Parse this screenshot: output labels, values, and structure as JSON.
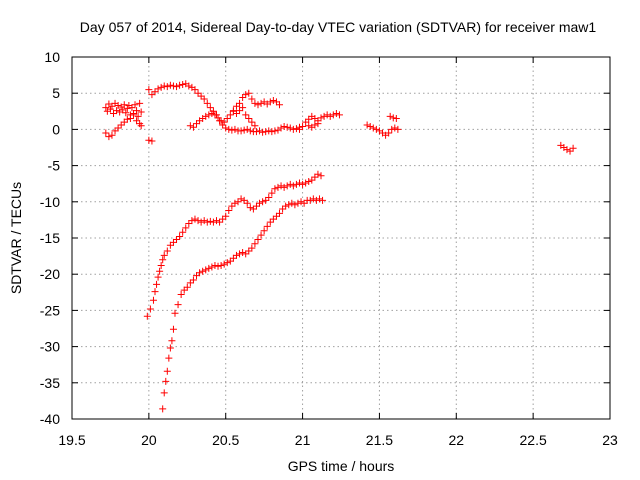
{
  "chart_data": {
    "type": "scatter",
    "title": "Day 057 of 2014, Sidereal Day-to-day VTEC variation (SDTVAR) for receiver maw1",
    "xlabel": "GPS time / hours",
    "ylabel": "SDTVAR / TECUs",
    "xlim": [
      19.5,
      23
    ],
    "ylim": [
      -40,
      10
    ],
    "x_ticks": [
      19.5,
      20,
      20.5,
      21,
      21.5,
      22,
      22.5,
      23
    ],
    "x_tick_labels": [
      "19.5",
      "20",
      "20.5",
      "21",
      "21.5",
      "22",
      "22.5",
      "23"
    ],
    "y_ticks": [
      -40,
      -35,
      -30,
      -25,
      -20,
      -15,
      -10,
      -5,
      0,
      5,
      10
    ],
    "y_tick_labels": [
      "-40",
      "-35",
      "-30",
      "-25",
      "-20",
      "-15",
      "-10",
      "-5",
      "0",
      "5",
      "10"
    ],
    "grid": true,
    "marker": "+",
    "color": "#ff0000",
    "series": [
      {
        "name": "s1",
        "points": [
          [
            19.72,
            3.0
          ],
          [
            19.73,
            2.5
          ],
          [
            19.74,
            3.5
          ],
          [
            19.75,
            2.8
          ],
          [
            19.76,
            3.2
          ],
          [
            19.77,
            2.2
          ],
          [
            19.78,
            3.6
          ],
          [
            19.79,
            2.6
          ],
          [
            19.8,
            3.3
          ],
          [
            19.81,
            2.4
          ],
          [
            19.82,
            3.1
          ],
          [
            19.83,
            2.7
          ],
          [
            19.84,
            3.4
          ],
          [
            19.85,
            2.3
          ],
          [
            19.86,
            2.9
          ],
          [
            19.87,
            3.3
          ],
          [
            19.88,
            2.0
          ],
          [
            19.89,
            3.0
          ],
          [
            19.9,
            2.2
          ],
          [
            19.91,
            3.4
          ],
          [
            19.92,
            2.6
          ],
          [
            19.93,
            1.8
          ],
          [
            19.94,
            3.6
          ],
          [
            19.95,
            2.4
          ]
        ]
      },
      {
        "name": "s2",
        "points": [
          [
            19.72,
            -0.5
          ],
          [
            19.74,
            -1.0
          ],
          [
            19.76,
            -0.8
          ],
          [
            19.78,
            -0.2
          ],
          [
            19.8,
            0.2
          ],
          [
            19.82,
            0.6
          ],
          [
            19.84,
            1.0
          ],
          [
            19.86,
            1.4
          ],
          [
            19.88,
            1.5
          ],
          [
            19.9,
            2.0
          ],
          [
            19.92,
            1.2
          ],
          [
            19.94,
            0.8
          ],
          [
            19.95,
            0.5
          ]
        ]
      },
      {
        "name": "s3",
        "points": [
          [
            20.0,
            -1.5
          ],
          [
            20.02,
            -1.6
          ]
        ]
      },
      {
        "name": "s4",
        "points": [
          [
            20.0,
            5.5
          ],
          [
            20.02,
            4.8
          ],
          [
            20.04,
            5.2
          ],
          [
            20.06,
            5.6
          ],
          [
            20.08,
            5.8
          ],
          [
            20.1,
            6.0
          ],
          [
            20.12,
            5.9
          ],
          [
            20.14,
            6.1
          ],
          [
            20.16,
            6.0
          ],
          [
            20.18,
            5.9
          ],
          [
            20.2,
            6.1
          ],
          [
            20.22,
            6.2
          ],
          [
            20.24,
            6.3
          ],
          [
            20.26,
            6.0
          ],
          [
            20.28,
            5.8
          ],
          [
            20.3,
            5.5
          ],
          [
            20.32,
            5.0
          ],
          [
            20.34,
            4.6
          ],
          [
            20.36,
            4.2
          ],
          [
            20.38,
            3.6
          ],
          [
            20.4,
            3.0
          ],
          [
            20.42,
            2.5
          ],
          [
            20.44,
            2.0
          ],
          [
            20.46,
            1.2
          ],
          [
            20.48,
            0.6
          ],
          [
            20.5,
            0.2
          ],
          [
            20.52,
            0.0
          ],
          [
            20.54,
            -0.1
          ],
          [
            20.56,
            0.0
          ],
          [
            20.58,
            -0.2
          ],
          [
            20.6,
            -0.2
          ],
          [
            20.62,
            -0.1
          ],
          [
            20.64,
            0.0
          ],
          [
            20.66,
            -0.2
          ],
          [
            20.68,
            -0.3
          ],
          [
            20.7,
            -0.3
          ],
          [
            20.72,
            -0.2
          ],
          [
            20.74,
            -0.4
          ],
          [
            20.76,
            -0.3
          ],
          [
            20.78,
            -0.2
          ],
          [
            20.8,
            -0.3
          ],
          [
            20.82,
            -0.2
          ],
          [
            20.84,
            -0.1
          ],
          [
            20.86,
            0.2
          ],
          [
            20.88,
            0.4
          ],
          [
            20.9,
            0.3
          ],
          [
            20.92,
            0.2
          ],
          [
            20.94,
            0.0
          ],
          [
            20.96,
            0.1
          ],
          [
            20.98,
            0.3
          ]
        ]
      },
      {
        "name": "s5",
        "points": [
          [
            20.27,
            0.5
          ],
          [
            20.29,
            0.3
          ],
          [
            20.31,
            0.8
          ],
          [
            20.33,
            1.2
          ],
          [
            20.35,
            1.5
          ],
          [
            20.37,
            1.8
          ],
          [
            20.39,
            2.0
          ],
          [
            20.41,
            2.2
          ],
          [
            20.43,
            2.0
          ],
          [
            20.45,
            1.6
          ],
          [
            20.47,
            1.2
          ],
          [
            20.49,
            1.0
          ],
          [
            20.51,
            1.5
          ],
          [
            20.53,
            2.0
          ],
          [
            20.55,
            2.6
          ],
          [
            20.57,
            3.2
          ],
          [
            20.59,
            3.6
          ],
          [
            20.61,
            4.4
          ],
          [
            20.63,
            4.8
          ],
          [
            20.65,
            5.0
          ],
          [
            20.67,
            4.2
          ],
          [
            20.69,
            3.6
          ],
          [
            20.71,
            3.4
          ],
          [
            20.73,
            3.6
          ],
          [
            20.75,
            3.8
          ],
          [
            20.77,
            3.5
          ],
          [
            20.79,
            3.8
          ],
          [
            20.81,
            4.0
          ],
          [
            20.83,
            3.8
          ],
          [
            20.85,
            3.4
          ]
        ]
      },
      {
        "name": "s6",
        "points": [
          [
            20.55,
            2.5
          ],
          [
            20.57,
            2.2
          ],
          [
            20.59,
            2.6
          ],
          [
            20.61,
            3.0
          ],
          [
            20.63,
            2.0
          ],
          [
            20.65,
            1.5
          ],
          [
            20.67,
            1.0
          ],
          [
            20.69,
            0.5
          ]
        ]
      },
      {
        "name": "s7",
        "points": [
          [
            20.98,
            0.0
          ],
          [
            21.0,
            0.4
          ],
          [
            21.02,
            1.0
          ],
          [
            21.04,
            1.4
          ],
          [
            21.06,
            1.8
          ],
          [
            21.08,
            1.5
          ],
          [
            21.1,
            1.2
          ],
          [
            21.12,
            1.6
          ],
          [
            21.14,
            1.8
          ],
          [
            21.16,
            2.0
          ],
          [
            21.18,
            1.8
          ],
          [
            21.2,
            2.0
          ],
          [
            21.22,
            2.2
          ],
          [
            21.24,
            2.0
          ],
          [
            21.04,
            0.5
          ],
          [
            21.06,
            0.3
          ],
          [
            21.08,
            0.6
          ],
          [
            21.1,
            0.8
          ]
        ]
      },
      {
        "name": "s8",
        "points": [
          [
            21.42,
            0.6
          ],
          [
            21.44,
            0.4
          ],
          [
            21.46,
            0.2
          ],
          [
            21.48,
            0.0
          ],
          [
            21.5,
            -0.2
          ],
          [
            21.52,
            -0.5
          ],
          [
            21.54,
            -0.8
          ],
          [
            21.56,
            -0.5
          ],
          [
            21.58,
            0.0
          ],
          [
            21.6,
            0.2
          ],
          [
            21.62,
            0.0
          ],
          [
            21.57,
            1.8
          ],
          [
            21.59,
            1.6
          ],
          [
            21.61,
            1.5
          ]
        ]
      },
      {
        "name": "s9",
        "points": [
          [
            22.68,
            -2.2
          ],
          [
            22.7,
            -2.5
          ],
          [
            22.72,
            -2.8
          ],
          [
            22.74,
            -3.0
          ],
          [
            22.76,
            -2.6
          ]
        ]
      },
      {
        "name": "s10",
        "points": [
          [
            19.99,
            -25.8
          ],
          [
            20.01,
            -24.8
          ],
          [
            20.03,
            -23.6
          ],
          [
            20.04,
            -22.4
          ],
          [
            20.05,
            -21.4
          ],
          [
            20.06,
            -20.4
          ],
          [
            20.07,
            -19.6
          ],
          [
            20.08,
            -18.8
          ],
          [
            20.09,
            -18.0
          ],
          [
            20.1,
            -17.4
          ],
          [
            20.12,
            -16.8
          ],
          [
            20.14,
            -16.0
          ],
          [
            20.16,
            -15.6
          ],
          [
            20.18,
            -15.2
          ],
          [
            20.2,
            -14.8
          ],
          [
            20.22,
            -14.2
          ],
          [
            20.24,
            -13.6
          ],
          [
            20.26,
            -13.0
          ],
          [
            20.28,
            -12.6
          ],
          [
            20.3,
            -12.4
          ],
          [
            20.32,
            -12.6
          ],
          [
            20.34,
            -12.8
          ],
          [
            20.36,
            -12.6
          ],
          [
            20.38,
            -12.8
          ],
          [
            20.4,
            -12.7
          ],
          [
            20.42,
            -12.8
          ],
          [
            20.44,
            -12.6
          ],
          [
            20.46,
            -12.8
          ],
          [
            20.48,
            -12.4
          ],
          [
            20.5,
            -12.0
          ],
          [
            20.52,
            -11.2
          ],
          [
            20.54,
            -10.6
          ],
          [
            20.56,
            -10.2
          ],
          [
            20.58,
            -10.0
          ],
          [
            20.6,
            -9.6
          ],
          [
            20.62,
            -9.8
          ],
          [
            20.64,
            -10.2
          ],
          [
            20.66,
            -10.8
          ],
          [
            20.68,
            -11.0
          ],
          [
            20.7,
            -10.6
          ],
          [
            20.72,
            -10.2
          ],
          [
            20.74,
            -10.0
          ],
          [
            20.76,
            -9.8
          ],
          [
            20.78,
            -9.4
          ],
          [
            20.8,
            -8.8
          ],
          [
            20.82,
            -8.2
          ],
          [
            20.84,
            -8.0
          ],
          [
            20.86,
            -7.8
          ],
          [
            20.88,
            -8.0
          ],
          [
            20.9,
            -7.8
          ],
          [
            20.92,
            -7.6
          ],
          [
            20.94,
            -7.8
          ],
          [
            20.96,
            -7.6
          ],
          [
            20.98,
            -7.4
          ],
          [
            21.0,
            -7.6
          ],
          [
            21.02,
            -7.4
          ],
          [
            21.04,
            -7.2
          ],
          [
            21.06,
            -7.0
          ],
          [
            21.08,
            -6.6
          ],
          [
            21.1,
            -6.2
          ],
          [
            21.12,
            -6.4
          ]
        ]
      },
      {
        "name": "s11",
        "points": [
          [
            20.09,
            -38.6
          ],
          [
            20.1,
            -36.4
          ],
          [
            20.11,
            -34.8
          ],
          [
            20.12,
            -33.4
          ],
          [
            20.13,
            -31.6
          ],
          [
            20.14,
            -30.2
          ],
          [
            20.15,
            -29.2
          ],
          [
            20.16,
            -27.6
          ],
          [
            20.17,
            -25.4
          ],
          [
            20.19,
            -24.2
          ],
          [
            20.21,
            -22.8
          ],
          [
            20.23,
            -22.2
          ],
          [
            20.25,
            -21.8
          ],
          [
            20.27,
            -21.2
          ],
          [
            20.29,
            -20.8
          ],
          [
            20.31,
            -20.2
          ],
          [
            20.33,
            -19.8
          ],
          [
            20.35,
            -19.6
          ],
          [
            20.37,
            -19.4
          ],
          [
            20.39,
            -19.2
          ],
          [
            20.41,
            -19.0
          ],
          [
            20.43,
            -18.8
          ],
          [
            20.45,
            -18.9
          ],
          [
            20.47,
            -18.8
          ],
          [
            20.49,
            -18.6
          ],
          [
            20.51,
            -18.4
          ],
          [
            20.53,
            -18.2
          ],
          [
            20.55,
            -17.8
          ],
          [
            20.57,
            -17.4
          ],
          [
            20.59,
            -17.2
          ],
          [
            20.61,
            -17.0
          ],
          [
            20.63,
            -17.2
          ],
          [
            20.65,
            -16.8
          ],
          [
            20.67,
            -16.4
          ],
          [
            20.69,
            -15.8
          ],
          [
            20.71,
            -15.2
          ],
          [
            20.73,
            -14.6
          ],
          [
            20.75,
            -14.0
          ],
          [
            20.77,
            -13.4
          ],
          [
            20.79,
            -12.8
          ],
          [
            20.81,
            -12.4
          ],
          [
            20.83,
            -12.0
          ],
          [
            20.85,
            -11.6
          ],
          [
            20.87,
            -11.0
          ],
          [
            20.89,
            -10.6
          ],
          [
            20.91,
            -10.4
          ],
          [
            20.93,
            -10.2
          ],
          [
            20.95,
            -10.4
          ],
          [
            20.97,
            -10.2
          ],
          [
            20.99,
            -10.0
          ],
          [
            21.01,
            -10.2
          ],
          [
            21.03,
            -9.8
          ],
          [
            21.05,
            -9.8
          ],
          [
            21.07,
            -9.6
          ],
          [
            21.09,
            -9.8
          ],
          [
            21.11,
            -9.6
          ],
          [
            21.13,
            -9.8
          ]
        ]
      }
    ]
  }
}
